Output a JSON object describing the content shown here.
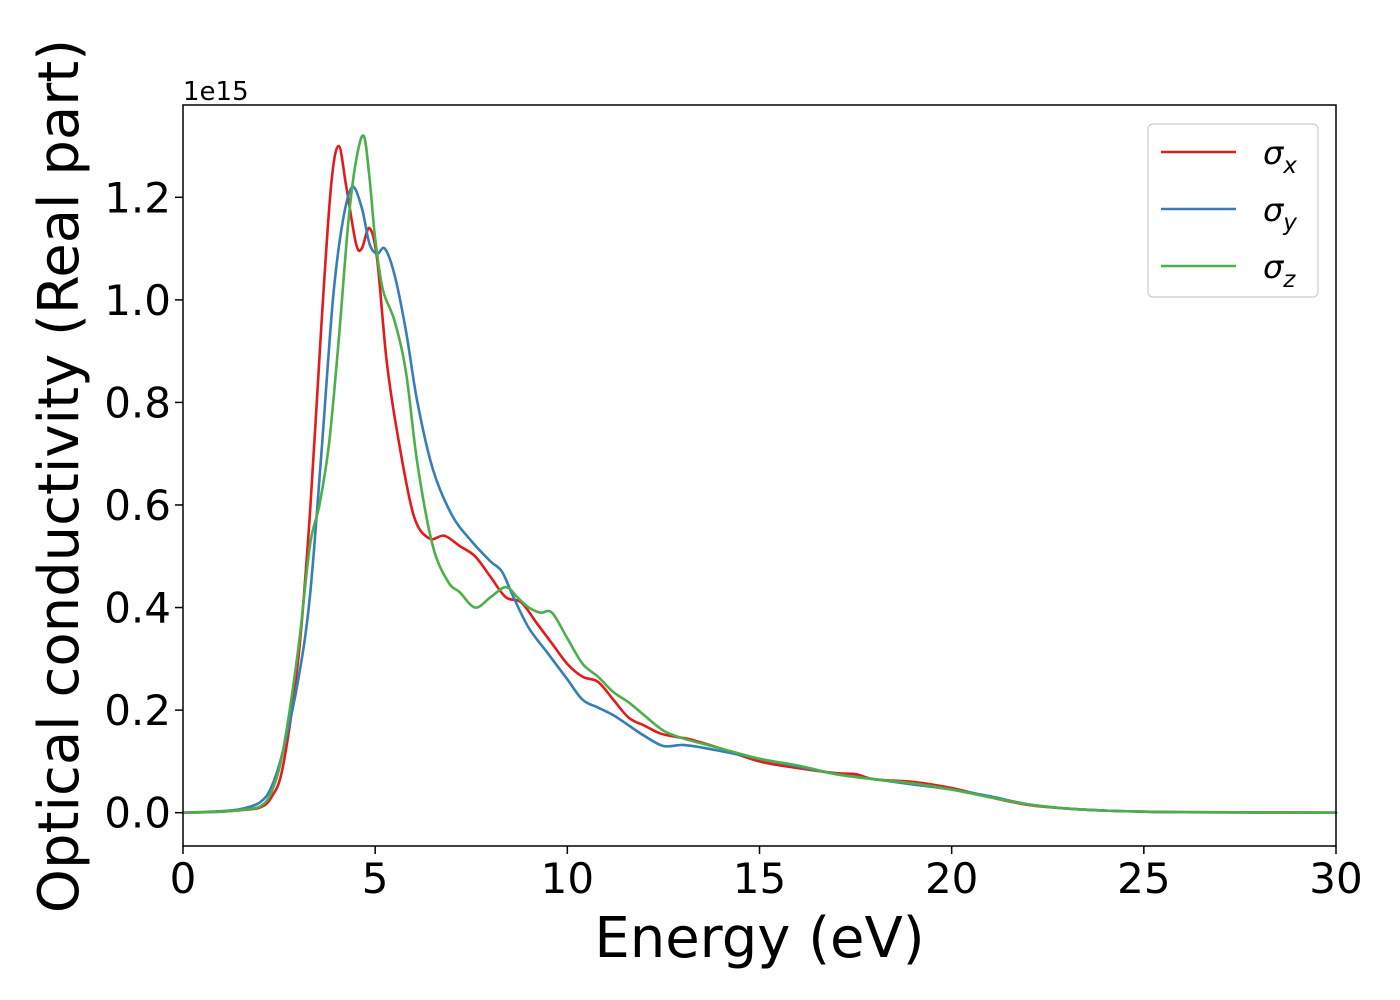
{
  "chart_data": {
    "type": "line",
    "title": "",
    "xlabel": "Energy (eV)",
    "ylabel": "Optical conductivity (Real part)",
    "y_offset_text": "1e15",
    "xlim": [
      0,
      30
    ],
    "ylim": [
      -0.065,
      1.38
    ],
    "y_multiplier": 1000000000000000.0,
    "x_ticks": [
      0,
      5,
      10,
      15,
      20,
      25,
      30
    ],
    "x_tick_labels": [
      "0",
      "5",
      "10",
      "15",
      "20",
      "25",
      "30"
    ],
    "y_ticks": [
      0.0,
      0.2,
      0.4,
      0.6,
      0.8,
      1.0,
      1.2
    ],
    "y_tick_labels": [
      "0.0",
      "0.2",
      "0.4",
      "0.6",
      "0.8",
      "1.0",
      "1.2"
    ],
    "grid": false,
    "legend_position": "top-right",
    "series": [
      {
        "name": "σx",
        "legend_base": "σ",
        "legend_sub": "x",
        "color": "#e41a1c",
        "x": [
          0,
          1,
          1.5,
          2,
          2.3,
          2.6,
          3,
          3.3,
          3.6,
          3.85,
          4.05,
          4.25,
          4.5,
          4.65,
          4.85,
          5.05,
          5.3,
          5.6,
          6.0,
          6.4,
          6.8,
          7.2,
          7.6,
          8.0,
          8.4,
          8.8,
          9.2,
          9.6,
          10.0,
          10.4,
          10.8,
          11.2,
          11.6,
          12.0,
          12.4,
          12.8,
          13.2,
          14.0,
          15.0,
          16.0,
          17.0,
          17.5,
          18.0,
          19.0,
          20.0,
          21.0,
          22.0,
          23.0,
          24.0,
          25.0,
          26.0,
          28.0,
          30.0
        ],
        "y": [
          0,
          0.002,
          0.005,
          0.01,
          0.03,
          0.09,
          0.3,
          0.58,
          0.95,
          1.22,
          1.3,
          1.22,
          1.11,
          1.1,
          1.14,
          1.08,
          0.88,
          0.73,
          0.58,
          0.535,
          0.54,
          0.52,
          0.5,
          0.46,
          0.42,
          0.41,
          0.37,
          0.33,
          0.29,
          0.265,
          0.255,
          0.22,
          0.185,
          0.17,
          0.155,
          0.148,
          0.143,
          0.125,
          0.1,
          0.087,
          0.077,
          0.075,
          0.065,
          0.06,
          0.048,
          0.03,
          0.015,
          0.008,
          0.004,
          0.002,
          0.001,
          0.0005,
          0
        ]
      },
      {
        "name": "σy",
        "legend_base": "σ",
        "legend_sub": "y",
        "color": "#377eb8",
        "x": [
          0,
          1,
          1.5,
          2,
          2.3,
          2.6,
          3,
          3.3,
          3.6,
          3.9,
          4.15,
          4.4,
          4.65,
          4.85,
          5.05,
          5.25,
          5.5,
          5.8,
          6.1,
          6.5,
          7.0,
          7.5,
          8.0,
          8.3,
          8.6,
          9.0,
          9.5,
          10.0,
          10.4,
          10.8,
          11.2,
          11.6,
          12.0,
          12.5,
          13.0,
          13.5,
          14.0,
          15.0,
          16.0,
          17.0,
          18.0,
          19.0,
          20.0,
          21.0,
          22.0,
          23.0,
          24.0,
          25.0,
          26.0,
          28.0,
          30.0
        ],
        "y": [
          0,
          0.003,
          0.007,
          0.02,
          0.05,
          0.12,
          0.26,
          0.42,
          0.7,
          1.0,
          1.15,
          1.22,
          1.18,
          1.11,
          1.09,
          1.1,
          1.05,
          0.94,
          0.8,
          0.67,
          0.58,
          0.53,
          0.49,
          0.47,
          0.42,
          0.36,
          0.31,
          0.26,
          0.22,
          0.205,
          0.19,
          0.17,
          0.15,
          0.13,
          0.132,
          0.127,
          0.12,
          0.105,
          0.09,
          0.075,
          0.065,
          0.055,
          0.045,
          0.032,
          0.016,
          0.008,
          0.004,
          0.002,
          0.001,
          0.0005,
          0
        ]
      },
      {
        "name": "σz",
        "legend_base": "σ",
        "legend_sub": "z",
        "color": "#4daf4a",
        "x": [
          0,
          1,
          1.5,
          2,
          2.3,
          2.6,
          3,
          3.3,
          3.55,
          3.8,
          4.05,
          4.3,
          4.5,
          4.7,
          4.85,
          5.0,
          5.2,
          5.5,
          5.8,
          6.1,
          6.5,
          6.9,
          7.2,
          7.6,
          8.0,
          8.4,
          8.7,
          9.0,
          9.3,
          9.6,
          10.0,
          10.4,
          10.8,
          11.2,
          11.6,
          12.0,
          12.5,
          13.0,
          13.5,
          14.0,
          15.0,
          16.0,
          17.0,
          18.0,
          19.0,
          20.0,
          21.0,
          22.0,
          23.0,
          24.0,
          25.0,
          26.0,
          28.0,
          30.0
        ],
        "y": [
          0,
          0.002,
          0.005,
          0.012,
          0.04,
          0.12,
          0.32,
          0.52,
          0.6,
          0.72,
          0.92,
          1.15,
          1.27,
          1.32,
          1.24,
          1.12,
          1.02,
          0.96,
          0.86,
          0.68,
          0.52,
          0.45,
          0.43,
          0.4,
          0.42,
          0.44,
          0.42,
          0.4,
          0.39,
          0.39,
          0.34,
          0.29,
          0.265,
          0.235,
          0.215,
          0.19,
          0.16,
          0.145,
          0.135,
          0.125,
          0.105,
          0.092,
          0.075,
          0.065,
          0.057,
          0.045,
          0.03,
          0.016,
          0.008,
          0.004,
          0.002,
          0.001,
          0.0005,
          0
        ]
      }
    ]
  }
}
